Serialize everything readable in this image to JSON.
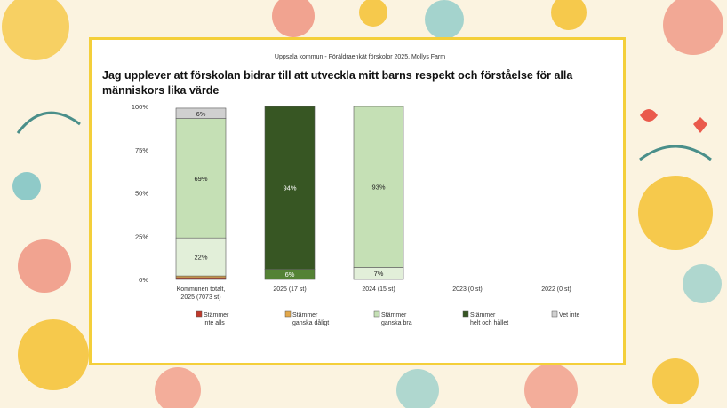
{
  "header": {
    "subtitle": "Uppsala kommun - Föräldraenkät förskolor 2025, Mollys Farm",
    "title": "Jag upplever att förskolan bidrar till att utveckla mitt barns respekt och förståelse för alla människors lika värde"
  },
  "chart_data": {
    "type": "bar",
    "stacked": true,
    "ylim": [
      0,
      100
    ],
    "yticks": [
      "0%",
      "25%",
      "50%",
      "75%",
      "100%"
    ],
    "categories": [
      [
        "Kommunen totalt,",
        "2025 (7073 st)"
      ],
      [
        "2025 (17 st)"
      ],
      [
        "2024 (15 st)"
      ],
      [
        "2023 (0 st)"
      ],
      [
        "2022 (0 st)"
      ]
    ],
    "series": [
      {
        "name": [
          "Stämmer",
          "inte alls"
        ],
        "color": "#c0392b",
        "values": [
          1,
          0,
          0,
          0,
          0
        ]
      },
      {
        "name": [
          "Stämmer",
          "ganska dåligt"
        ],
        "color": "#e3a84a",
        "values": [
          1,
          0,
          0,
          0,
          0
        ]
      },
      {
        "name": [
          "Stämmer",
          "ganska bra"
        ],
        "color": "#c5e0b5",
        "values": [
          22,
          6,
          7,
          0,
          0
        ]
      },
      {
        "name": [
          "Stämmer",
          "helt och hållet"
        ],
        "color": "#c5e0b5",
        "dark_color": "#38571f",
        "values": [
          69,
          94,
          93,
          0,
          0
        ]
      },
      {
        "name": [
          "Vet inte"
        ],
        "color": "#d0d0d0",
        "values": [
          6,
          0,
          0,
          0,
          0
        ]
      }
    ],
    "bar_fills": [
      [
        "#c0392b",
        "#e3a84a",
        "#e2efd9",
        "#c5e0b5",
        "#d0d0d0"
      ],
      [
        "#c0392b",
        "#e3a84a",
        "#548235",
        "#375623",
        "#d0d0d0"
      ],
      [
        "#c0392b",
        "#e3a84a",
        "#e2efd9",
        "#c5e0b5",
        "#d0d0d0"
      ],
      [
        "#c0392b",
        "#e3a84a",
        "#e2efd9",
        "#c5e0b5",
        "#d0d0d0"
      ],
      [
        "#c0392b",
        "#e3a84a",
        "#e2efd9",
        "#c5e0b5",
        "#d0d0d0"
      ]
    ],
    "legend_colors": [
      "#c0392b",
      "#e3a84a",
      "#c5e0b5",
      "#375623",
      "#d0d0d0"
    ],
    "data_labels": [
      [
        null,
        null,
        "22%",
        "69%",
        "6%"
      ],
      [
        null,
        null,
        "6%",
        "94%",
        null
      ],
      [
        null,
        null,
        "7%",
        "93%",
        null
      ],
      [
        null,
        null,
        null,
        null,
        null
      ],
      [
        null,
        null,
        null,
        null,
        null
      ]
    ],
    "legend_position": "bottom"
  }
}
